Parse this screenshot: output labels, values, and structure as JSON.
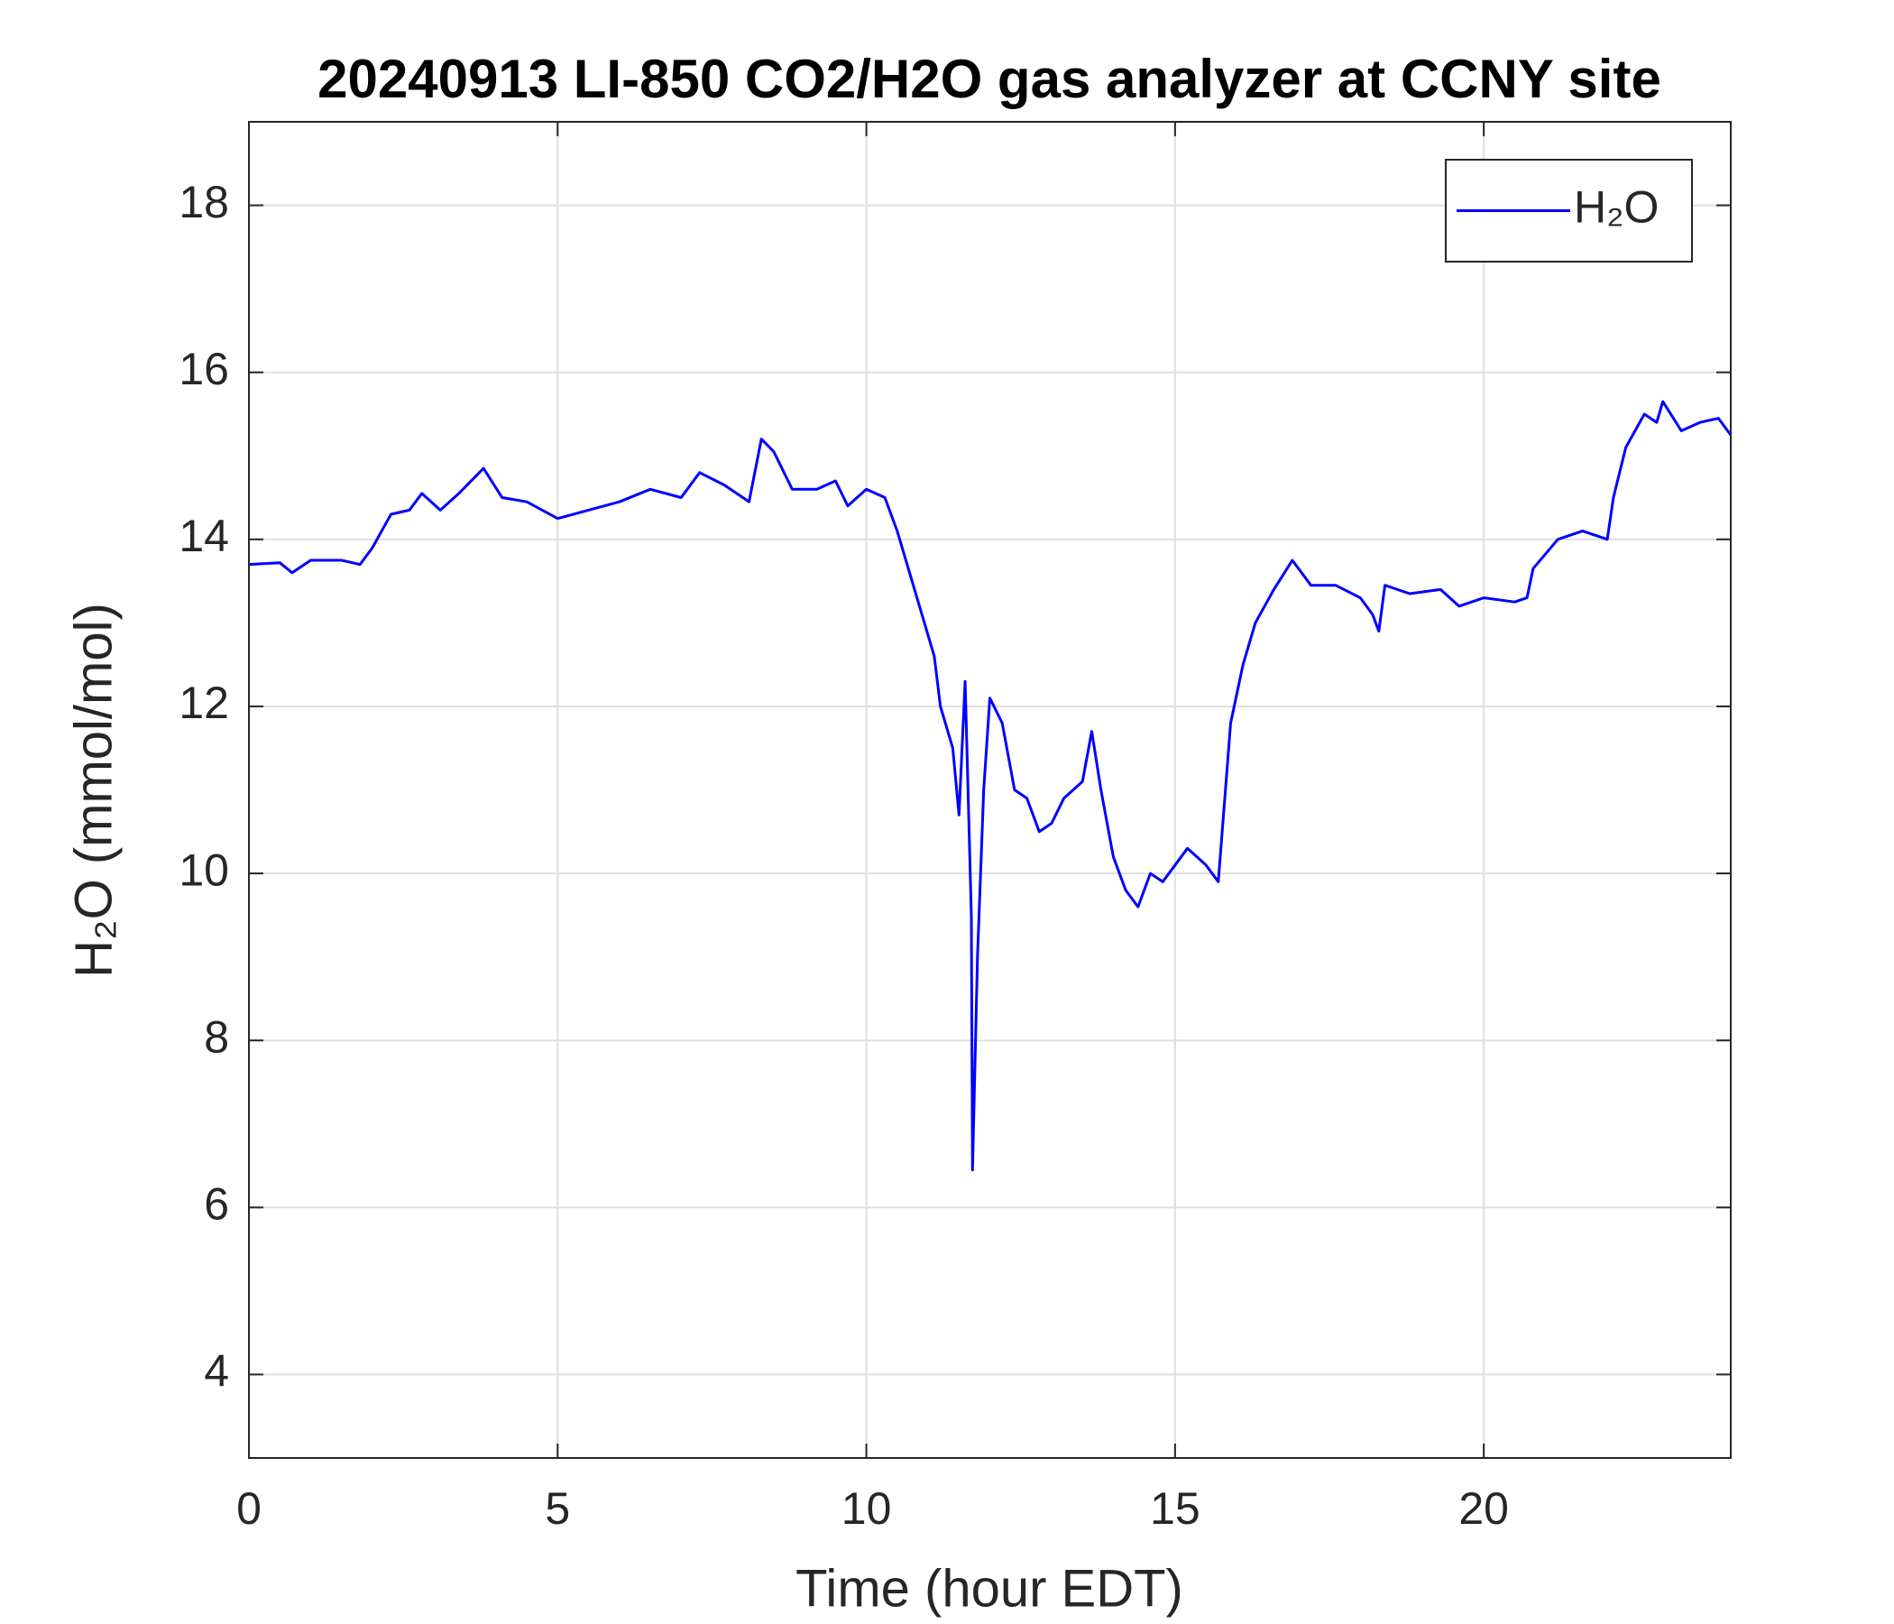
{
  "chart_data": {
    "type": "line",
    "title": "20240913 LI-850 CO2/H2O gas analyzer at CCNY site",
    "x_label": "Time (hour EDT)",
    "y_label": "H₂O (mmol/mol)",
    "xlim": [
      0,
      24
    ],
    "xticks": [
      0,
      5,
      10,
      15,
      20
    ],
    "ylim": [
      3,
      19
    ],
    "yticks": [
      4,
      6,
      8,
      10,
      12,
      14,
      16,
      18
    ],
    "grid": true,
    "legend": "top-right",
    "x": [
      0,
      0.5,
      0.7,
      1.0,
      1.5,
      1.8,
      2.0,
      2.3,
      2.6,
      2.8,
      3.1,
      3.4,
      3.8,
      4.1,
      4.5,
      5.0,
      5.5,
      6.0,
      6.5,
      7.0,
      7.3,
      7.7,
      8.0,
      8.1,
      8.3,
      8.5,
      8.8,
      9.2,
      9.5,
      9.7,
      10.0,
      10.3,
      10.5,
      10.7,
      10.9,
      11.1,
      11.2,
      11.4,
      11.5,
      11.6,
      11.7,
      11.72,
      11.8,
      11.9,
      12.0,
      12.2,
      12.4,
      12.6,
      12.8,
      13.0,
      13.2,
      13.5,
      13.65,
      13.8,
      14.0,
      14.2,
      14.4,
      14.6,
      14.8,
      15.0,
      15.2,
      15.5,
      15.7,
      15.9,
      16.1,
      16.3,
      16.6,
      16.9,
      17.2,
      17.6,
      18.0,
      18.2,
      18.3,
      18.4,
      18.8,
      19.3,
      19.6,
      20.0,
      20.5,
      20.7,
      20.8,
      21.2,
      21.6,
      22.0,
      22.1,
      22.3,
      22.6,
      22.8,
      22.9,
      23.2,
      23.5,
      23.8,
      24.0
    ],
    "series": [
      {
        "name": "H₂O",
        "color": "#0000ff",
        "values": [
          13.7,
          13.72,
          13.6,
          13.75,
          13.75,
          13.7,
          13.9,
          14.3,
          14.35,
          14.55,
          14.35,
          14.55,
          14.85,
          14.5,
          14.45,
          14.25,
          14.35,
          14.45,
          14.6,
          14.5,
          14.8,
          14.65,
          14.5,
          14.45,
          15.2,
          15.05,
          14.6,
          14.6,
          14.7,
          14.4,
          14.6,
          14.5,
          14.1,
          13.6,
          13.1,
          12.6,
          12.0,
          11.5,
          10.7,
          12.3,
          9.5,
          6.45,
          9.0,
          11.0,
          12.1,
          11.8,
          11.0,
          10.9,
          10.5,
          10.6,
          10.9,
          11.1,
          11.7,
          11.0,
          10.2,
          9.8,
          9.6,
          10.0,
          9.9,
          10.1,
          10.3,
          10.1,
          9.9,
          11.8,
          12.5,
          13.0,
          13.4,
          13.75,
          13.45,
          13.45,
          13.3,
          13.1,
          12.9,
          13.45,
          13.35,
          13.4,
          13.2,
          13.3,
          13.25,
          13.3,
          13.65,
          14.0,
          14.1,
          14.0,
          14.5,
          15.1,
          15.5,
          15.4,
          15.65,
          15.3,
          15.4,
          15.45,
          15.25
        ]
      }
    ]
  }
}
